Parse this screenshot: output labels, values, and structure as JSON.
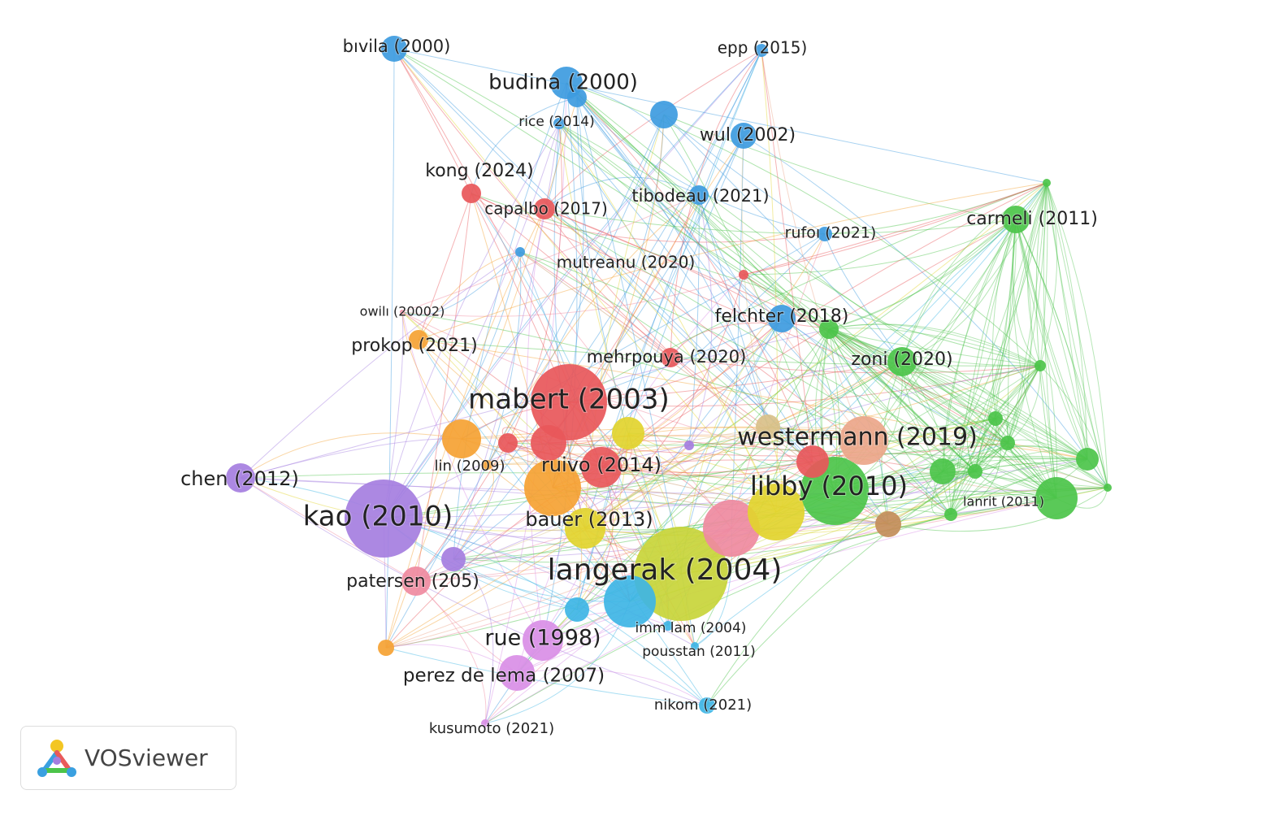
{
  "clusters": {
    "blue": "#3d9be0",
    "red": "#e8575a",
    "green": "#4cc44a",
    "purple": "#a57ee0",
    "orange": "#f5a233",
    "yellow": "#e2d42e",
    "violet": "#d98ee6",
    "pink": "#ef8aa0",
    "salmon": "#eba68a",
    "lime": "#c8d53a",
    "cyan": "#3eb5e5",
    "brown": "#c38d5a",
    "tan": "#d9c089"
  },
  "nodes": [
    {
      "label": "bıvila (2000)",
      "cluster": "blue"
    },
    {
      "label": "budina (2000)",
      "cluster": "blue"
    },
    {
      "label": "",
      "cluster": "blue"
    },
    {
      "label": "rice (2014)",
      "cluster": "blue"
    },
    {
      "label": "epp (2015)",
      "cluster": "blue"
    },
    {
      "label": "wul (2002)",
      "cluster": "blue"
    },
    {
      "label": "kong (2024)",
      "cluster": "red"
    },
    {
      "label": "capalbo (2017)",
      "cluster": "red"
    },
    {
      "label": "tibodeau (2021)",
      "cluster": "blue"
    },
    {
      "label": "rufoı (2021)",
      "cluster": "blue"
    },
    {
      "label": "carmeli (2011)",
      "cluster": "green"
    },
    {
      "label": "mutreanu (2020)",
      "cluster": "blue"
    },
    {
      "label": "owilı (20002)",
      "cluster": "pink"
    },
    {
      "label": "prokop (2021)",
      "cluster": "orange"
    },
    {
      "label": "felchter (2018)",
      "cluster": "blue"
    },
    {
      "label": "mehrpouya (2020)",
      "cluster": "red"
    },
    {
      "label": "zoni (2020)",
      "cluster": "green"
    },
    {
      "label": "mabert (2003)",
      "cluster": "red"
    },
    {
      "label": "westermann (2019)",
      "cluster": "salmon"
    },
    {
      "label": "chen (2012)",
      "cluster": "purple"
    },
    {
      "label": "lin (2009)",
      "cluster": "orange"
    },
    {
      "label": "ruivo (2014)",
      "cluster": "red"
    },
    {
      "label": "libby (2010)",
      "cluster": "green"
    },
    {
      "label": "lanrit (2011)",
      "cluster": "green"
    },
    {
      "label": "kao (2010)",
      "cluster": "purple"
    },
    {
      "label": "bauer (2013)",
      "cluster": "yellow"
    },
    {
      "label": "langerak (2004)",
      "cluster": "lime"
    },
    {
      "label": "patersen (205)",
      "cluster": "pink"
    },
    {
      "label": "rue (1998)",
      "cluster": "violet"
    },
    {
      "label": "imm lam (2004)",
      "cluster": "cyan"
    },
    {
      "label": "pousstan (2011)",
      "cluster": "cyan"
    },
    {
      "label": "perez de lema (2007)",
      "cluster": "violet"
    },
    {
      "label": "nikom (2021)",
      "cluster": "cyan"
    },
    {
      "label": "kusumoto (2021)",
      "cluster": "violet"
    },
    {
      "label": "",
      "cluster": "orange"
    },
    {
      "label": "",
      "cluster": "yellow"
    },
    {
      "label": "",
      "cluster": "red"
    },
    {
      "label": "",
      "cluster": "orange"
    },
    {
      "label": "",
      "cluster": "pink"
    },
    {
      "label": "",
      "cluster": "yellow"
    },
    {
      "label": "",
      "cluster": "cyan"
    },
    {
      "label": "",
      "cluster": "brown"
    },
    {
      "label": "",
      "cluster": "purple"
    },
    {
      "label": "",
      "cluster": "cyan"
    },
    {
      "label": "",
      "cluster": "orange"
    },
    {
      "label": "",
      "cluster": "green"
    },
    {
      "label": "",
      "cluster": "green"
    },
    {
      "label": "",
      "cluster": "green"
    },
    {
      "label": "",
      "cluster": "green"
    },
    {
      "label": "",
      "cluster": "green"
    },
    {
      "label": "",
      "cluster": "green"
    },
    {
      "label": "",
      "cluster": "green"
    },
    {
      "label": "",
      "cluster": "green"
    },
    {
      "label": "",
      "cluster": "green"
    },
    {
      "label": "",
      "cluster": "green"
    },
    {
      "label": "",
      "cluster": "tan"
    },
    {
      "label": "",
      "cluster": "red"
    },
    {
      "label": "",
      "cluster": "blue"
    },
    {
      "label": "",
      "cluster": "red"
    },
    {
      "label": "",
      "cluster": "purple"
    },
    {
      "label": "",
      "cluster": "red"
    }
  ],
  "logo": {
    "text": "VOSviewer"
  }
}
